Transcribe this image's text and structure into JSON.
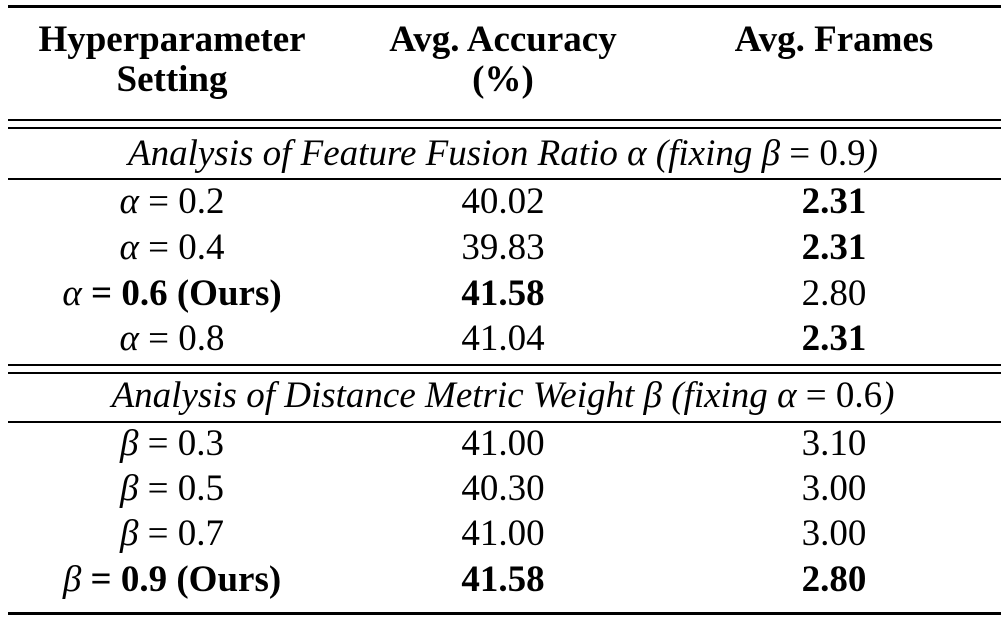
{
  "header": {
    "col1_line1": "Hyperparameter",
    "col1_line2": "Setting",
    "col2_line1": "Avg. Accuracy",
    "col2_line2": "(%)",
    "col3_line1": "Avg. Frames"
  },
  "sections": [
    {
      "title_pre": "Analysis of Feature Fusion Ratio ",
      "title_sym": "α",
      "title_mid": " (fixing ",
      "title_sym2": "β",
      "title_val": " = 0.9",
      "title_post": ")",
      "rows": [
        {
          "sym": "α",
          "val": " = 0.2",
          "note": "",
          "acc": "40.02",
          "frames": "2.31",
          "bold_setting": false,
          "bold_acc": false,
          "bold_frames": true
        },
        {
          "sym": "α",
          "val": " = 0.4",
          "note": "",
          "acc": "39.83",
          "frames": "2.31",
          "bold_setting": false,
          "bold_acc": false,
          "bold_frames": true
        },
        {
          "sym": "α",
          "val": " = 0.6",
          "note": " (Ours)",
          "acc": "41.58",
          "frames": "2.80",
          "bold_setting": true,
          "bold_acc": true,
          "bold_frames": false
        },
        {
          "sym": "α",
          "val": " = 0.8",
          "note": "",
          "acc": "41.04",
          "frames": "2.31",
          "bold_setting": false,
          "bold_acc": false,
          "bold_frames": true
        }
      ]
    },
    {
      "title_pre": "Analysis of Distance Metric Weight ",
      "title_sym": "β",
      "title_mid": " (fixing ",
      "title_sym2": "α",
      "title_val": " = 0.6",
      "title_post": ")",
      "rows": [
        {
          "sym": "β",
          "val": " = 0.3",
          "note": "",
          "acc": "41.00",
          "frames": "3.10",
          "bold_setting": false,
          "bold_acc": false,
          "bold_frames": false
        },
        {
          "sym": "β",
          "val": " = 0.5",
          "note": "",
          "acc": "40.30",
          "frames": "3.00",
          "bold_setting": false,
          "bold_acc": false,
          "bold_frames": false
        },
        {
          "sym": "β",
          "val": " = 0.7",
          "note": "",
          "acc": "41.00",
          "frames": "3.00",
          "bold_setting": false,
          "bold_acc": false,
          "bold_frames": false
        },
        {
          "sym": "β",
          "val": " = 0.9",
          "note": " (Ours)",
          "acc": "41.58",
          "frames": "2.80",
          "bold_setting": true,
          "bold_acc": true,
          "bold_frames": true
        }
      ]
    }
  ]
}
